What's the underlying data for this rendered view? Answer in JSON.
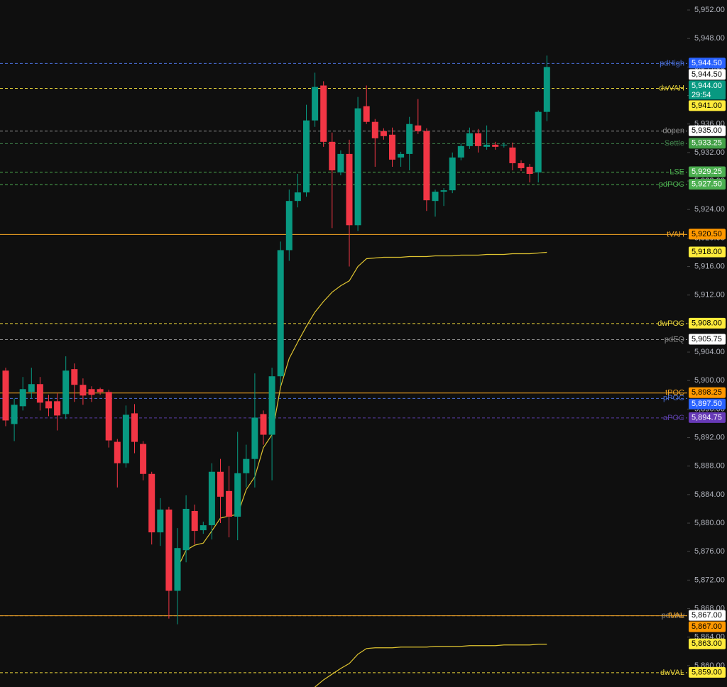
{
  "chart_data": {
    "type": "candlestick",
    "up_color": "#089981",
    "down_color": "#f23645",
    "open": [
      5901.4,
      5893.9,
      5896.4,
      5898.4,
      5899.5,
      5897.1,
      5897.1,
      5895.3,
      5901.6,
      5899.4,
      5898.8,
      5898.8,
      5898.4,
      5891.4,
      5888.4,
      5895.4,
      5891.1,
      5886.9,
      5878.7,
      5881.9,
      5870.5,
      5876.2,
      5881.7,
      5879.0,
      5879.7,
      5887.2,
      5884.5,
      5880.9,
      5887.0,
      5889.0,
      5895.3,
      5892.4,
      5900.6,
      5918.3,
      5925.2,
      5926.4,
      5936.5,
      5941.4,
      5933.5,
      5929.2,
      5931.8,
      5921.8,
      5938.5,
      5936.3,
      5935.0,
      5934.5,
      5931.3,
      5931.8,
      5935.8,
      5935.0,
      5925.2,
      5926.5,
      5926.7,
      5931.3,
      5932.9,
      5934.7,
      5932.8,
      5933.1,
      5933.0,
      5932.7,
      5930.5,
      5930.0,
      5929.2,
      5937.7
    ],
    "high": [
      5901.8,
      5897.5,
      5900.5,
      5901.8,
      5900.5,
      5898.0,
      5898.2,
      5903.4,
      5902.4,
      5900.3,
      5899.2,
      5899.0,
      5898.7,
      5891.8,
      5896.5,
      5896.7,
      5891.5,
      5887.2,
      5883.5,
      5882.3,
      5879.3,
      5883.9,
      5882.6,
      5880.2,
      5888.4,
      5889.0,
      5888.0,
      5892.8,
      5891.0,
      5901.0,
      5895.8,
      5901.8,
      5919.5,
      5926.8,
      5929.0,
      5938.7,
      5943.2,
      5942.0,
      5934.8,
      5932.3,
      5933.8,
      5939.8,
      5941.4,
      5936.7,
      5935.4,
      5935.5,
      5932.1,
      5937.0,
      5939.5,
      5935.4,
      5926.8,
      5927.0,
      5932.0,
      5933.3,
      5935.5,
      5935.3,
      5935.8,
      5933.5,
      5933.4,
      5933.4,
      5930.9,
      5930.4,
      5937.9,
      5945.6
    ],
    "low": [
      5893.6,
      5891.5,
      5895.8,
      5897.5,
      5895.8,
      5895.0,
      5893.0,
      5894.6,
      5897.0,
      5896.6,
      5897.0,
      5898.0,
      5890.6,
      5885.0,
      5887.8,
      5889.8,
      5886.0,
      5877.0,
      5876.8,
      5866.6,
      5865.8,
      5874.5,
      5877.0,
      5878.5,
      5877.7,
      5880.0,
      5878.0,
      5877.6,
      5885.0,
      5885.0,
      5891.0,
      5886.0,
      5899.3,
      5916.8,
      5924.3,
      5925.8,
      5935.6,
      5932.8,
      5921.4,
      5928.8,
      5916.0,
      5921.0,
      5936.0,
      5930.0,
      5933.8,
      5930.0,
      5930.0,
      5929.5,
      5934.6,
      5923.8,
      5923.0,
      5924.5,
      5926.3,
      5930.9,
      5932.5,
      5932.0,
      5932.4,
      5932.4,
      5932.7,
      5929.5,
      5929.4,
      5927.8,
      5927.8,
      5936.4
    ],
    "close": [
      5894.4,
      5896.6,
      5898.8,
      5899.5,
      5896.9,
      5896.1,
      5895.1,
      5901.4,
      5899.4,
      5897.9,
      5898.0,
      5898.4,
      5891.6,
      5888.4,
      5895.2,
      5891.4,
      5886.9,
      5878.7,
      5881.9,
      5870.5,
      5876.5,
      5882.0,
      5878.9,
      5879.7,
      5887.2,
      5883.7,
      5880.9,
      5887.0,
      5889.0,
      5894.8,
      5892.4,
      5900.6,
      5918.3,
      5925.2,
      5926.4,
      5936.5,
      5941.2,
      5933.5,
      5929.5,
      5931.8,
      5921.8,
      5938.2,
      5936.3,
      5934.0,
      5934.3,
      5931.0,
      5931.8,
      5936.0,
      5935.0,
      5925.3,
      5926.5,
      5926.7,
      5931.3,
      5932.9,
      5934.7,
      5932.9,
      5933.1,
      5932.8,
      5933.1,
      5930.5,
      5929.8,
      5929.0,
      5937.7,
      5944.0
    ],
    "lines": [
      {
        "color": "#e0c531",
        "values": [
          null,
          null,
          null,
          null,
          null,
          null,
          null,
          null,
          null,
          null,
          null,
          null,
          null,
          null,
          null,
          null,
          null,
          null,
          null,
          null,
          5873.7,
          5876.2,
          5876.9,
          5877.2,
          5878.9,
          5880.7,
          5881.0,
          5881.2,
          5884.7,
          5886.5,
          5890.6,
          5892.4,
          5899.1,
          5903.1,
          5905.4,
          5907.6,
          5909.6,
          5911.1,
          5912.4,
          5913.3,
          5914.0,
          5916.0,
          5917.1,
          5917.2,
          5917.3,
          5917.3,
          5917.3,
          5917.4,
          5917.4,
          5917.4,
          5917.5,
          5917.5,
          5917.5,
          5917.6,
          5917.6,
          5917.6,
          5917.7,
          5917.7,
          5917.7,
          5917.8,
          5917.8,
          5917.8,
          5917.9,
          5918.0
        ]
      },
      {
        "color": "#e0c531",
        "values": [
          null,
          null,
          null,
          null,
          null,
          null,
          null,
          null,
          null,
          null,
          null,
          null,
          null,
          null,
          null,
          null,
          null,
          null,
          null,
          null,
          null,
          null,
          null,
          null,
          null,
          null,
          null,
          null,
          null,
          null,
          null,
          null,
          null,
          null,
          null,
          null,
          5857.0,
          5858.0,
          5858.8,
          5859.6,
          5860.3,
          5861.6,
          5862.4,
          5862.5,
          5862.5,
          5862.5,
          5862.6,
          5862.6,
          5862.6,
          5862.6,
          5862.7,
          5862.7,
          5862.7,
          5862.7,
          5862.8,
          5862.8,
          5862.8,
          5862.8,
          5862.9,
          5862.9,
          5862.9,
          5862.9,
          5863.0,
          5863.0
        ]
      }
    ],
    "levels": [
      {
        "name": "pdHigh",
        "value": 5944.5,
        "value_label": "5,944.50",
        "color": "#4a6fd8",
        "tag_color": "#2962ff",
        "text_color": "#ffffff",
        "dash": true
      },
      {
        "name": "dwVAH",
        "value": 5941.0,
        "value_label": "5,941.00",
        "color": "#e6d23a",
        "tag_color": "#ffeb3b",
        "text_color": "#000000",
        "dash": true
      },
      {
        "name": "dopen",
        "value": 5935.0,
        "value_label": "5,935.00",
        "color": "#8a8a8a",
        "tag_color": "#ffffff",
        "text_color": "#000000",
        "dash": true
      },
      {
        "name": "Settle",
        "value": 5933.25,
        "value_label": "5,933.25",
        "color": "#3f7f4a",
        "tag_color": "#43a047",
        "text_color": "#ffffff",
        "dash": true
      },
      {
        "name": "LSE",
        "value": 5929.25,
        "value_label": "5,929.25",
        "color": "#4caf50",
        "tag_color": "#4caf50",
        "text_color": "#ffffff",
        "dash": true
      },
      {
        "name": "pdPOC",
        "value": 5927.5,
        "value_label": "5,927.50",
        "color": "#4caf50",
        "tag_color": "#4caf50",
        "text_color": "#ffffff",
        "dash": true
      },
      {
        "name": "tVAH",
        "value": 5920.5,
        "value_label": "5,920.50",
        "color": "#f5a623",
        "tag_color": "#ff9800",
        "text_color": "#000000",
        "dash": false
      },
      {
        "name": "dwPOC",
        "value": 5908.0,
        "value_label": "5,908.00",
        "color": "#e6d23a",
        "tag_color": "#ffeb3b",
        "text_color": "#000000",
        "dash": true
      },
      {
        "name": "pdEQ",
        "value": 5905.75,
        "value_label": "5,905.75",
        "color": "#8a8a8a",
        "tag_color": "#ffffff",
        "text_color": "#000000",
        "dash": true
      },
      {
        "name": "tPOC",
        "value": 5898.25,
        "value_label": "5,898.25",
        "color": "#f5a623",
        "tag_color": "#ff9800",
        "text_color": "#000000",
        "dash": false
      },
      {
        "name": "pPOC",
        "value": 5897.5,
        "value_label": "5,897.50",
        "color": "#4a6fd8",
        "tag_color": "#2962ff",
        "text_color": "#ffffff",
        "dash": true
      },
      {
        "name": "aPOC",
        "value": 5894.75,
        "value_label": "5,894.75",
        "color": "#5b3fa8",
        "tag_color": "#673ab7",
        "text_color": "#ffffff",
        "dash": true
      },
      {
        "name": "pdLow",
        "value": 5867.0,
        "value_label": "5,867.00",
        "color": "#8a8a8a",
        "tag_color": "#ffffff",
        "text_color": "#000000",
        "dash": true
      },
      {
        "name": "tVAL",
        "value": 5867.0,
        "value_label": "5,867.00",
        "color": "#f5a623",
        "tag_color": "#ff9800",
        "text_color": "#000000",
        "dash": false
      },
      {
        "name": "dwVAL",
        "value": 5859.0,
        "value_label": "5,859.00",
        "color": "#e6d23a",
        "tag_color": "#ffeb3b",
        "text_color": "#000000",
        "dash": true
      }
    ],
    "tags": [
      {
        "value": 5944.5,
        "label": "5,944.50",
        "tag_color": "#ffffff",
        "text_color": "#000000"
      },
      {
        "value": 5944.0,
        "label": "5,944.00",
        "countdown": "29:54",
        "tag_color": "#089981",
        "text_color": "#ffffff"
      },
      {
        "value": 5918.0,
        "label": "5,918.00",
        "tag_color": "#ffeb3b",
        "text_color": "#000000"
      },
      {
        "value": 5863.0,
        "label": "5,863.00",
        "tag_color": "#ffeb3b",
        "text_color": "#000000"
      }
    ],
    "ylim": [
      5857.0,
      5953.4
    ],
    "yticks": [
      {
        "value": 5952,
        "label": "5,952.00"
      },
      {
        "value": 5948,
        "label": "5,948.00"
      },
      {
        "value": 5944,
        "label": "5,944.00"
      },
      {
        "value": 5940,
        "label": "5,940.00"
      },
      {
        "value": 5936,
        "label": "5,936.00"
      },
      {
        "value": 5932,
        "label": "5,932.00"
      },
      {
        "value": 5928,
        "label": "5,928.00"
      },
      {
        "value": 5924,
        "label": "5,924.00"
      },
      {
        "value": 5920,
        "label": "5,920.00"
      },
      {
        "value": 5916,
        "label": "5,916.00"
      },
      {
        "value": 5912,
        "label": "5,912.00"
      },
      {
        "value": 5908,
        "label": "5,908.00"
      },
      {
        "value": 5904,
        "label": "5,904.00"
      },
      {
        "value": 5900,
        "label": "5,900.00"
      },
      {
        "value": 5896,
        "label": "5,896.00"
      },
      {
        "value": 5892,
        "label": "5,892.00"
      },
      {
        "value": 5888,
        "label": "5,888.00"
      },
      {
        "value": 5884,
        "label": "5,884.00"
      },
      {
        "value": 5880,
        "label": "5,880.00"
      },
      {
        "value": 5876,
        "label": "5,876.00"
      },
      {
        "value": 5872,
        "label": "5,872.00"
      },
      {
        "value": 5868,
        "label": "5,868.00"
      },
      {
        "value": 5864,
        "label": "5,864.00"
      },
      {
        "value": 5860,
        "label": "5,860.00"
      }
    ]
  }
}
